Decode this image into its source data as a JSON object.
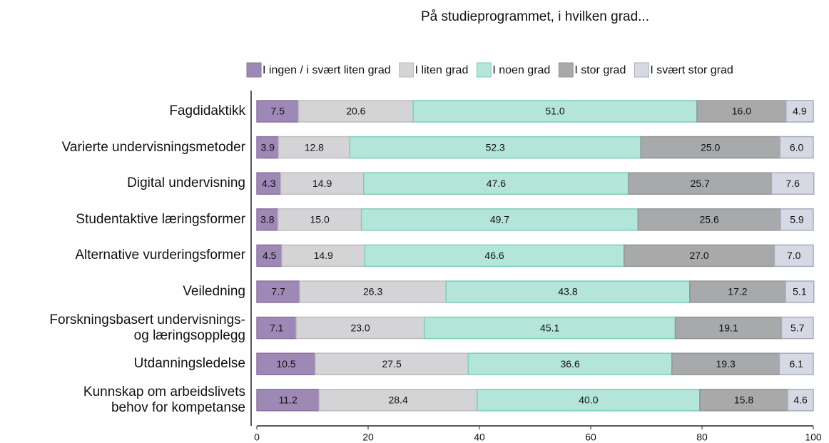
{
  "chart_data": {
    "type": "stacked-barh",
    "title": "På studieprogrammet, i hvilken grad...",
    "categories": [
      "Fagdidaktikk",
      "Varierte undervisningsmetoder",
      "Digital undervisning",
      "Studentaktive læringsformer",
      "Alternative vurderingsformer",
      "Veiledning",
      "Forskningsbasert undervisnings-\nog læringsopplegg",
      "Utdanningsledelse",
      "Kunnskap om arbeidslivets\nbehov for kompetanse"
    ],
    "series": [
      {
        "name": "I ingen / i svært liten grad",
        "color": "#9e88b5",
        "border": "#8a74a2",
        "values": [
          7.5,
          3.9,
          4.3,
          3.8,
          4.5,
          7.7,
          7.1,
          10.5,
          11.2
        ],
        "value_labels": [
          "7.5",
          "3.9",
          "4.3",
          "3.8",
          "4.5",
          "7.7",
          "7.1",
          "10.5",
          "11.2"
        ]
      },
      {
        "name": "I liten grad",
        "color": "#d4d4d6",
        "border": "#bdbdc0",
        "values": [
          20.6,
          12.8,
          14.9,
          15.0,
          14.9,
          26.3,
          23.0,
          27.5,
          28.4
        ],
        "value_labels": [
          "20.6",
          "12.8",
          "14.9",
          "15.0",
          "14.9",
          "26.3",
          "23.0",
          "27.5",
          "28.4"
        ]
      },
      {
        "name": "I noen grad",
        "color": "#b3e5d9",
        "border": "#7ccfb9",
        "values": [
          51.0,
          52.3,
          47.6,
          49.7,
          46.6,
          43.8,
          45.1,
          36.6,
          40.0
        ],
        "value_labels": [
          "51.0",
          "52.3",
          "47.6",
          "49.7",
          "46.6",
          "43.8",
          "45.1",
          "36.6",
          "40.0"
        ]
      },
      {
        "name": "I stor grad",
        "color": "#a7a9ab",
        "border": "#939597",
        "values": [
          16.0,
          25.0,
          25.7,
          25.6,
          27.0,
          17.2,
          19.1,
          19.3,
          15.8
        ],
        "value_labels": [
          "16.0",
          "25.0",
          "25.7",
          "25.6",
          "27.0",
          "17.2",
          "19.1",
          "19.3",
          "15.8"
        ]
      },
      {
        "name": "I svært stor grad",
        "color": "#d6d8e4",
        "border": "#a9abbd",
        "values": [
          4.9,
          6.0,
          7.6,
          5.9,
          7.0,
          5.1,
          5.7,
          6.1,
          4.6
        ],
        "value_labels": [
          "4.9",
          "6.0",
          "7.6",
          "5.9",
          "7.0",
          "5.1",
          "5.7",
          "6.1",
          "4.6"
        ]
      }
    ],
    "xlim": [
      0,
      100
    ],
    "xticks": [
      0,
      20,
      40,
      60,
      80,
      100
    ]
  }
}
